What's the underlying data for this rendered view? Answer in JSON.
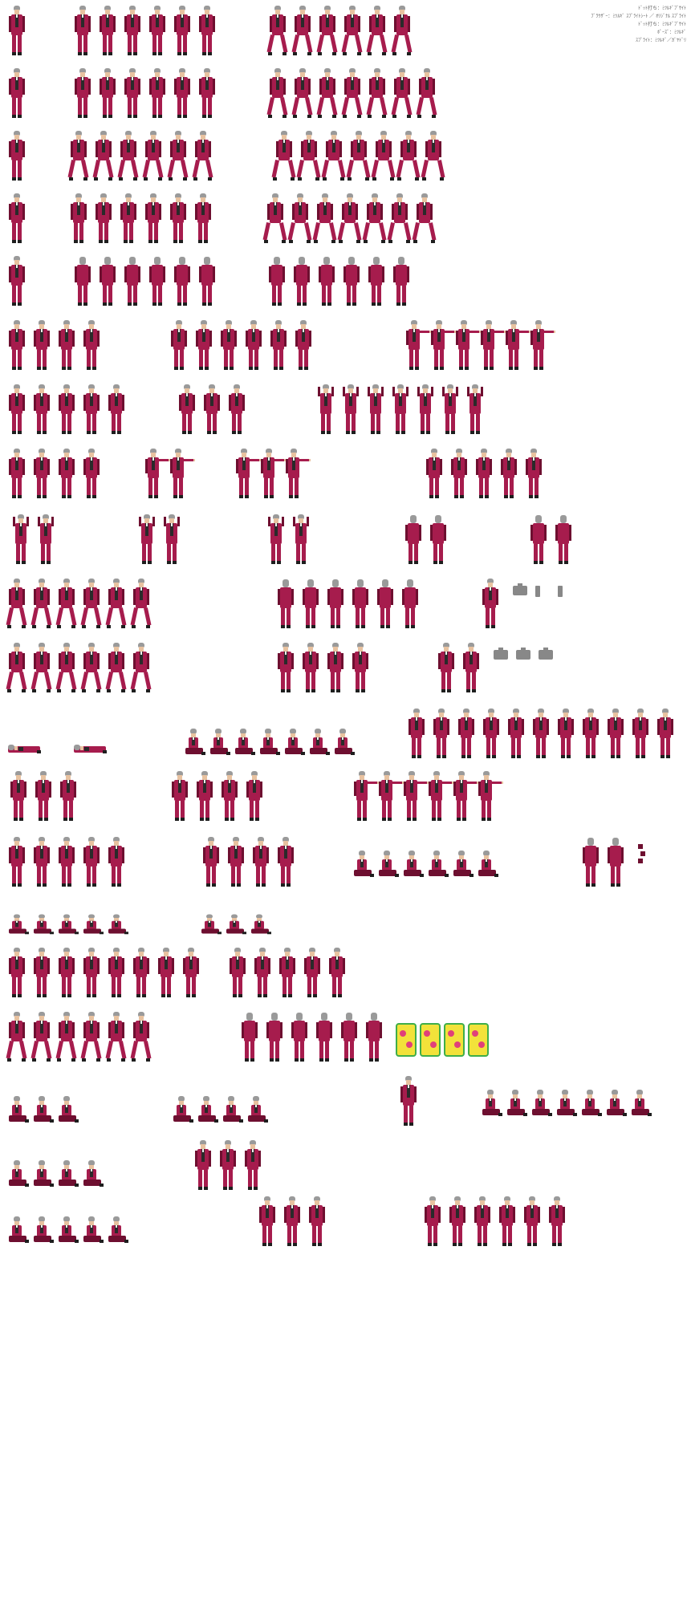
{
  "sheet": {
    "background": "#ffffff",
    "credits": [
      "ﾄﾞｯﾄ打ち：ﾐﾂﾙｷﾞﾌﾞｻｲﾄ",
      "ﾌﾞﾗｳｻﾞｰ：ﾐﾂﾙｷﾞ ｽﾌﾟﾗｲﾄｼｰﾄ ／ ｵﾘｼﾞﾅﾙ ｽﾌﾟﾗｲﾄ",
      "ﾄﾞｯﾄ打ち：ﾐﾂﾙｷﾞﾌﾞｻｲﾄ",
      "ﾎﾟｰｽﾞ：ﾐﾂﾙｷﾞ",
      "ｽﾌﾟﾗｲﾄ：ﾐﾂﾙｷﾞ／ｶﾞﾔﾄﾞﾘ"
    ]
  },
  "palette": {
    "suit": "#a61c4d",
    "suit_shade": "#6e0f30",
    "hair": "#9a9a9a",
    "skin": "#e8c2a0",
    "shirt": "#2a2a2a",
    "cravat": "#f2f2f2",
    "shoe": "#1e1e1e",
    "briefcase": "#888888",
    "suitcase": "#f2e23a",
    "suitcase_dots": "#e0407a",
    "suitcase_trim": "#3fae49"
  },
  "rows": [
    {
      "name": "idle-front",
      "groups": [
        {
          "count": 1,
          "pose": "stand"
        },
        {
          "count": 6,
          "pose": "stand"
        },
        {
          "count": 6,
          "pose": "walk"
        }
      ]
    },
    {
      "name": "idle-side",
      "groups": [
        {
          "count": 1,
          "pose": "stand"
        },
        {
          "count": 6,
          "pose": "stand"
        },
        {
          "count": 7,
          "pose": "walk"
        }
      ]
    },
    {
      "name": "walk",
      "groups": [
        {
          "count": 1,
          "pose": "stand"
        },
        {
          "count": 6,
          "pose": "walk"
        },
        {
          "count": 7,
          "pose": "run"
        }
      ]
    },
    {
      "name": "back",
      "groups": [
        {
          "count": 1,
          "pose": "stand"
        },
        {
          "count": 6,
          "pose": "stand"
        },
        {
          "count": 7,
          "pose": "run"
        }
      ]
    },
    {
      "name": "back-walk",
      "groups": [
        {
          "count": 1,
          "pose": "stand"
        },
        {
          "count": 6,
          "pose": "back"
        },
        {
          "count": 6,
          "pose": "back"
        }
      ]
    },
    {
      "name": "objection-1",
      "groups": [
        {
          "count": 4,
          "pose": "stand"
        },
        {
          "count": 6,
          "pose": "stand"
        },
        {
          "count": 6,
          "pose": "point"
        }
      ]
    },
    {
      "name": "objection-2",
      "groups": [
        {
          "count": 5,
          "pose": "stand"
        },
        {
          "count": 3,
          "pose": "stand"
        },
        {
          "count": 7,
          "pose": "arms-up"
        }
      ]
    },
    {
      "name": "point",
      "groups": [
        {
          "count": 4,
          "pose": "stand"
        },
        {
          "count": 2,
          "pose": "point"
        },
        {
          "count": 3,
          "pose": "point"
        },
        {
          "count": 5,
          "pose": "stand"
        }
      ]
    },
    {
      "name": "shrug",
      "groups": [
        {
          "count": 2,
          "pose": "arms-up"
        },
        {
          "count": 2,
          "pose": "arms-up"
        },
        {
          "count": 2,
          "pose": "arms-up"
        },
        {
          "count": 2,
          "pose": "back"
        },
        {
          "count": 2,
          "pose": "back"
        }
      ]
    },
    {
      "name": "walk-briefcase",
      "groups": [
        {
          "count": 6,
          "pose": "walk"
        },
        {
          "count": 6,
          "pose": "back"
        },
        {
          "count": 1,
          "pose": "stand"
        }
      ],
      "props": [
        "briefcase",
        "bottle",
        "bottle"
      ]
    },
    {
      "name": "carry",
      "groups": [
        {
          "count": 6,
          "pose": "walk"
        },
        {
          "count": 4,
          "pose": "stand"
        },
        {
          "count": 2,
          "pose": "stand"
        }
      ],
      "props": [
        "briefcase",
        "briefcase",
        "briefcase"
      ]
    },
    {
      "name": "fall",
      "groups": [
        {
          "count": 2,
          "pose": "lying"
        },
        {
          "count": 7,
          "pose": "sitting"
        },
        {
          "count": 11,
          "pose": "stand"
        }
      ]
    },
    {
      "name": "think",
      "groups": [
        {
          "count": 3,
          "pose": "stand"
        },
        {
          "count": 4,
          "pose": "stand"
        },
        {
          "count": 6,
          "pose": "point"
        }
      ]
    },
    {
      "name": "kneel",
      "groups": [
        {
          "count": 5,
          "pose": "stand"
        },
        {
          "count": 4,
          "pose": "stand"
        },
        {
          "count": 6,
          "pose": "kneel"
        },
        {
          "count": 2,
          "pose": "back"
        }
      ],
      "props": [
        "papers"
      ]
    },
    {
      "name": "crouch",
      "groups": [
        {
          "count": 5,
          "pose": "sitting"
        },
        {
          "count": 3,
          "pose": "sitting"
        }
      ]
    },
    {
      "name": "gesture",
      "groups": [
        {
          "count": 8,
          "pose": "stand"
        },
        {
          "count": 5,
          "pose": "stand"
        }
      ]
    },
    {
      "name": "walk-away",
      "groups": [
        {
          "count": 6,
          "pose": "walk"
        },
        {
          "count": 6,
          "pose": "back"
        }
      ],
      "props": [
        "suitcase",
        "suitcase",
        "suitcase",
        "suitcase"
      ]
    },
    {
      "name": "lean",
      "groups": [
        {
          "count": 3,
          "pose": "sitting"
        },
        {
          "count": 4,
          "pose": "sitting"
        },
        {
          "count": 1,
          "pose": "stand"
        },
        {
          "count": 7,
          "pose": "kneel"
        }
      ]
    },
    {
      "name": "sit-cross",
      "groups": [
        {
          "count": 4,
          "pose": "sitting"
        },
        {
          "count": 3,
          "pose": "stand"
        }
      ]
    },
    {
      "name": "sit-down",
      "groups": [
        {
          "count": 5,
          "pose": "sitting"
        },
        {
          "count": 3,
          "pose": "stand"
        },
        {
          "count": 6,
          "pose": "stand"
        }
      ]
    }
  ]
}
